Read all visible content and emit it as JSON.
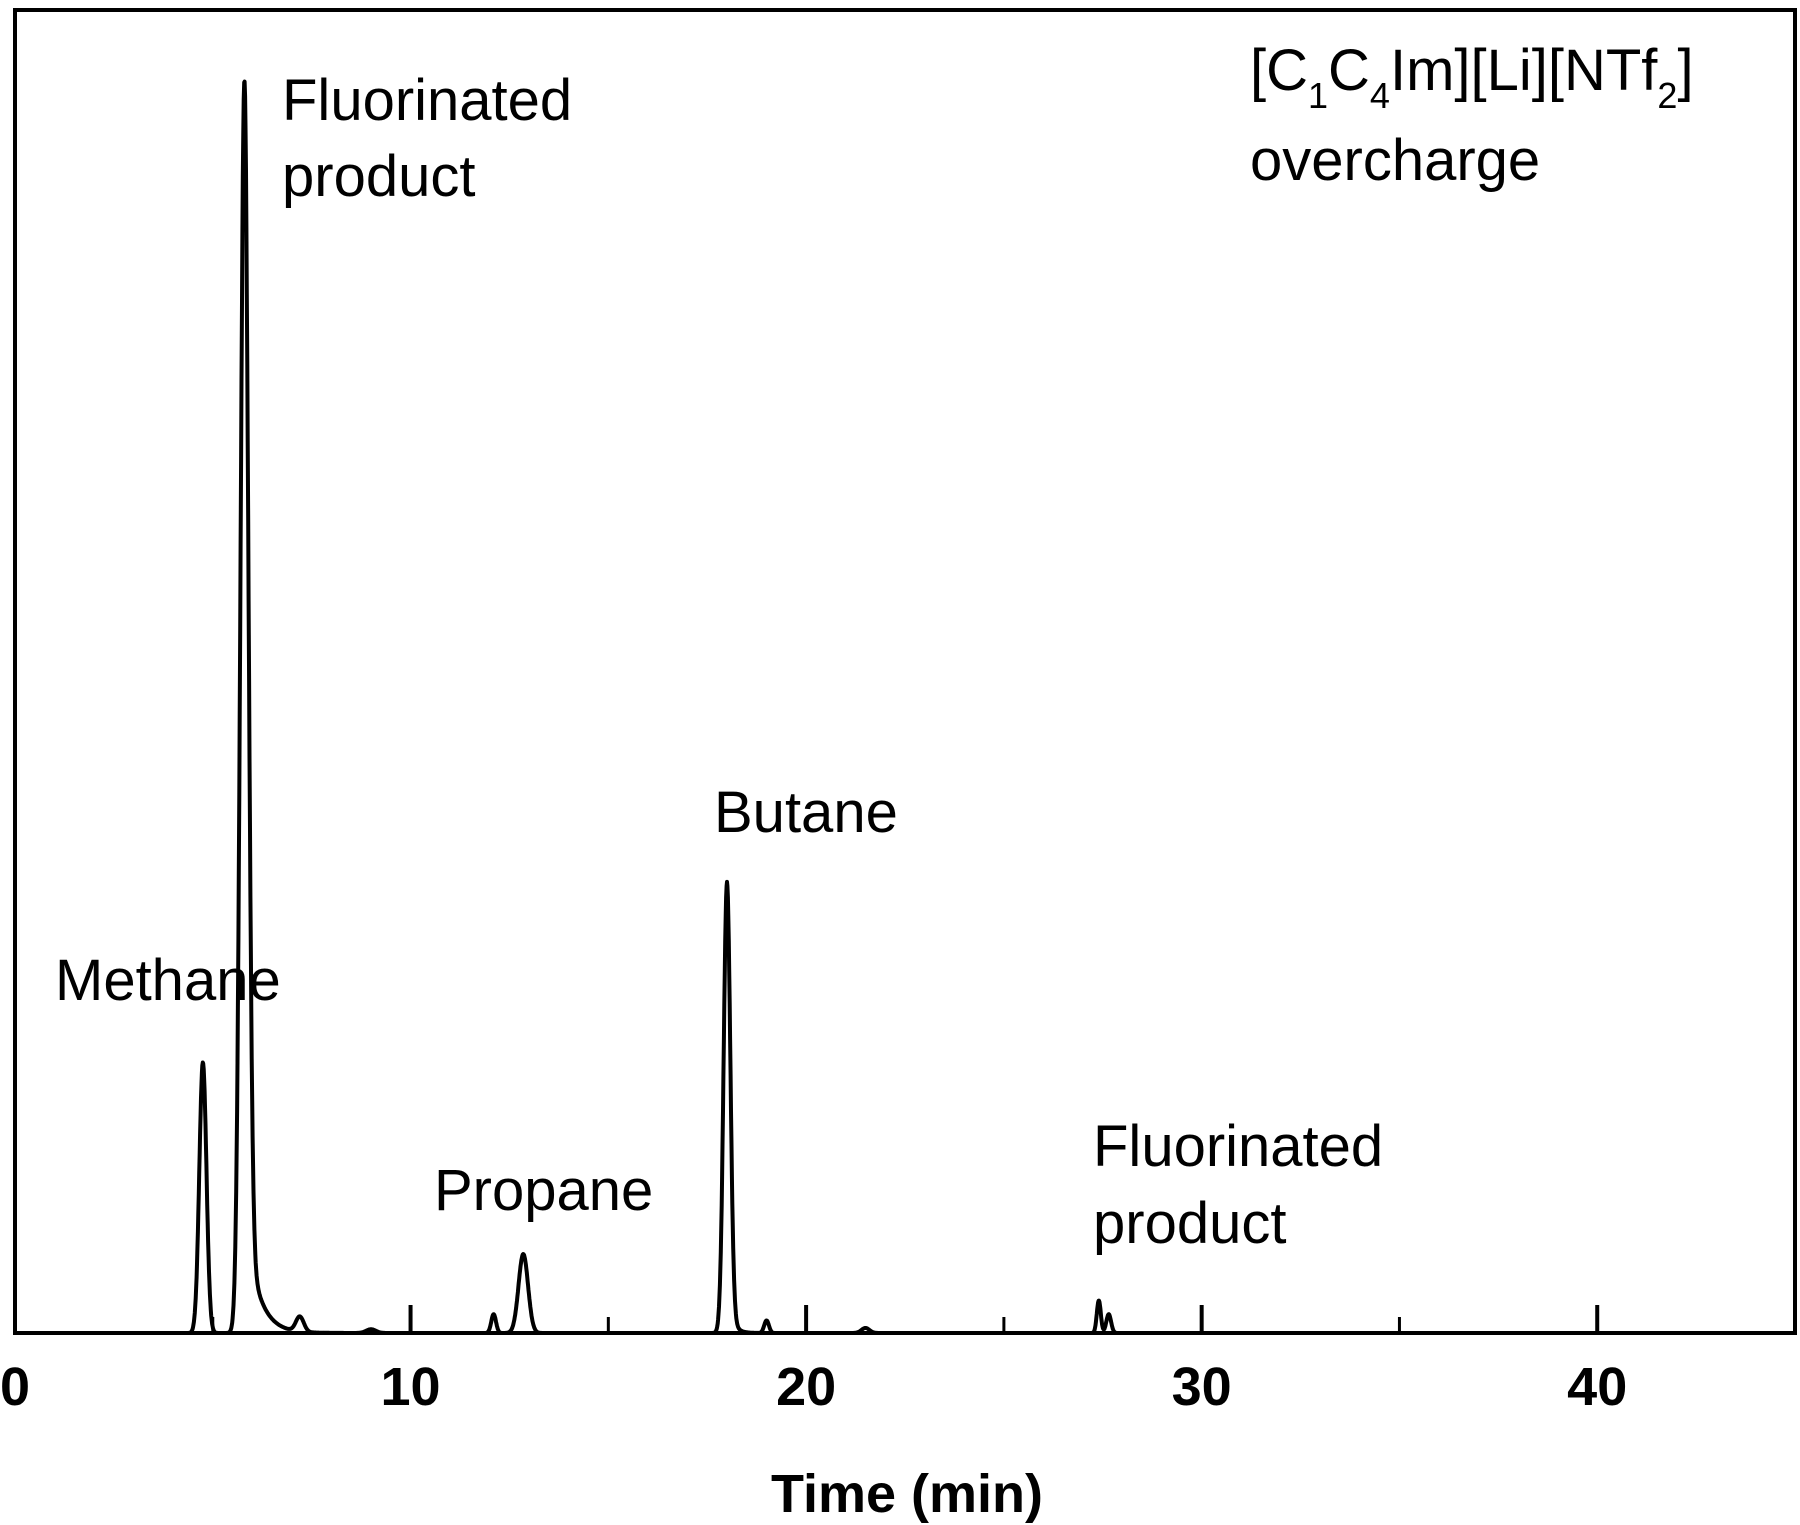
{
  "chart_data": {
    "type": "line",
    "xlabel": "Time (min)",
    "ylabel": "",
    "xlim": [
      0,
      45
    ],
    "ylim": [
      0,
      1
    ],
    "x_ticks_major": [
      0,
      10,
      20,
      30,
      40
    ],
    "x_ticks_minor": [
      5,
      15,
      25,
      35
    ],
    "x_tick_labels": [
      "0",
      "10",
      "20",
      "30",
      "40"
    ],
    "grid": false,
    "legend": "none",
    "line_color": "#000000",
    "condition_label": {
      "line1_parts": [
        "[C",
        "1",
        "C",
        "4",
        "Im][Li][NTf",
        "2",
        "]"
      ],
      "line2": "overcharge"
    },
    "peaks": [
      {
        "label": "Methane",
        "time": 4.75,
        "height": 0.216,
        "width": 0.09
      },
      {
        "label": "Fluorinated product",
        "time": 5.8,
        "height": 1.0,
        "width": 0.1,
        "tail": 0.32
      },
      {
        "label": "",
        "time": 7.2,
        "height": 0.012,
        "width": 0.1
      },
      {
        "label": "",
        "time": 9.0,
        "height": 0.003,
        "width": 0.12
      },
      {
        "label": "",
        "time": 12.1,
        "height": 0.015,
        "width": 0.06
      },
      {
        "label": "Propane",
        "time": 12.85,
        "height": 0.063,
        "width": 0.12
      },
      {
        "label": "Butane",
        "time": 18.0,
        "height": 0.36,
        "width": 0.085,
        "tail": 0.12
      },
      {
        "label": "",
        "time": 19.0,
        "height": 0.01,
        "width": 0.06
      },
      {
        "label": "",
        "time": 21.5,
        "height": 0.004,
        "width": 0.1
      },
      {
        "label": "Fluorinated product",
        "time": 27.4,
        "height": 0.026,
        "width": 0.05
      },
      {
        "label": "",
        "time": 27.65,
        "height": 0.015,
        "width": 0.06
      }
    ],
    "annotations": {
      "methane": "Methane",
      "fluorinated_1_line1": "Fluorinated",
      "fluorinated_1_line2": "product",
      "propane": "Propane",
      "butane": "Butane",
      "fluorinated_2_line1": "Fluorinated",
      "fluorinated_2_line2": "product"
    }
  }
}
